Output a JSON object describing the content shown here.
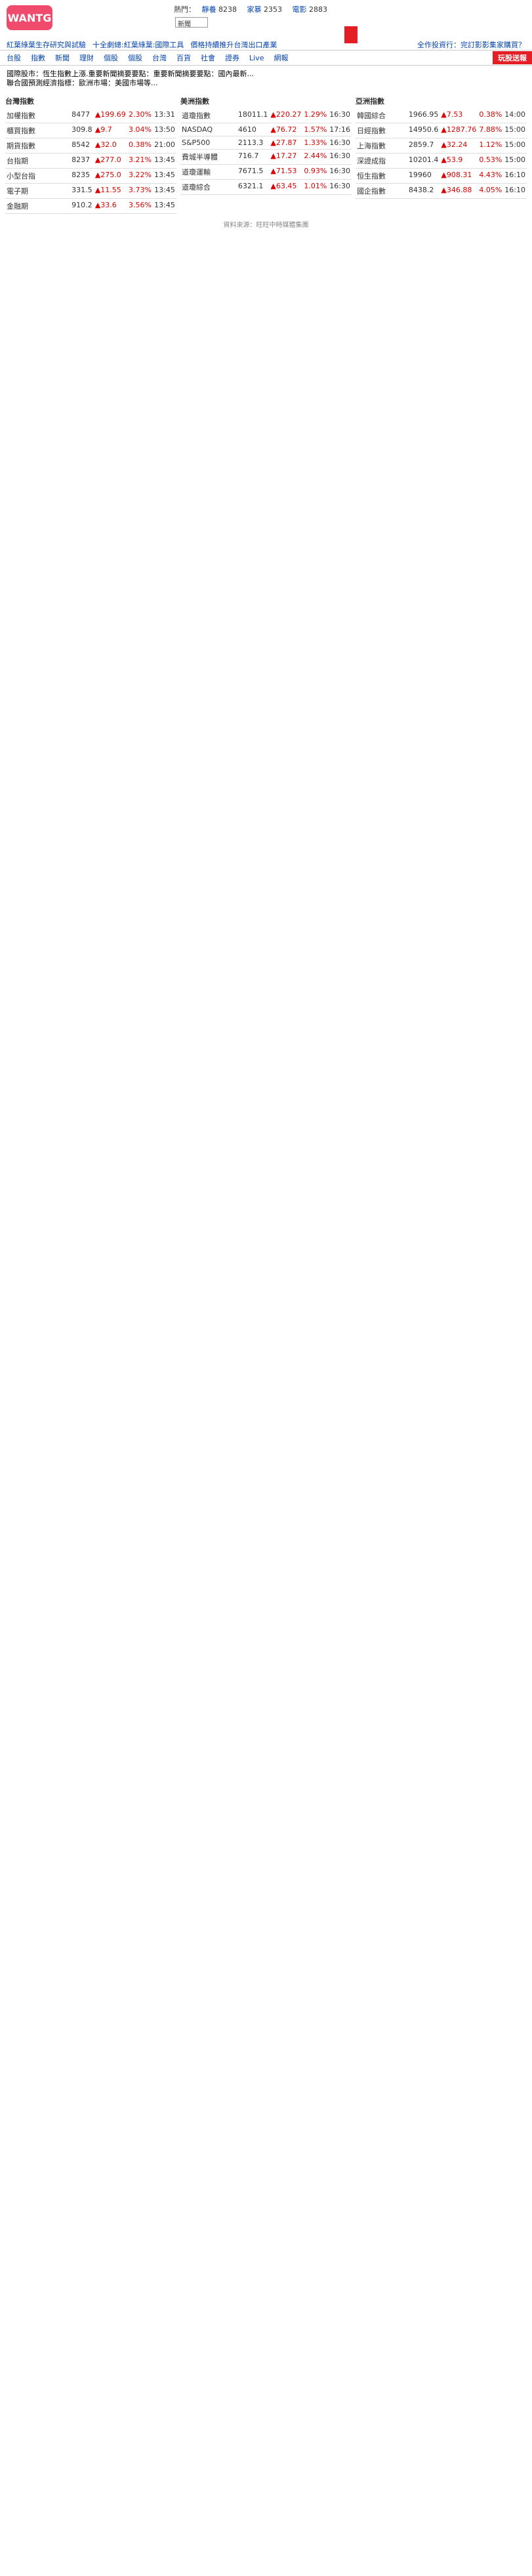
{
  "header": {
    "logo_text": "WANTG",
    "hot_label": "熱門：",
    "hot_links": [
      {
        "label": "靜養",
        "count": "8238"
      },
      {
        "label": "家暴",
        "count": "2353"
      },
      {
        "label": "電影",
        "count": "2883"
      }
    ],
    "select_value": "新聞"
  },
  "links": [
    "紅葉綠葉生存研究與試驗",
    "十全劇總:紅葉綠葉:國際工具",
    "價格持續推升台灣出口產業"
  ],
  "links_right": [
    "全作投資行：完訂影影集家購買？"
  ],
  "nav": [
    "台股",
    "指數",
    "新聞",
    "理財",
    "個股",
    "個股",
    "台灣",
    "百貨",
    "社會",
    "證券",
    "Live",
    "網報"
  ],
  "ad_text": "玩股送報",
  "bullets": [
    "國際股市：恆生指數上漲.重要新聞摘要要點：重要新聞摘要要點：國內最新...",
    "聯合國預測經濟指標：歐洲市場：美國市場等..."
  ],
  "tables": {
    "taiwan": [
      {
        "name": "加權指數",
        "price": "8477",
        "chg": "▲199.69",
        "pct": "2.30%",
        "time": "13:31"
      },
      {
        "name": "櫃買指數",
        "price": "309.8",
        "chg": "▲9.7",
        "pct": "3.04%",
        "time": "13:50"
      },
      {
        "name": "期貨指數",
        "price": "8542",
        "chg": "▲32.0",
        "pct": "0.38%",
        "time": "21:00"
      },
      {
        "name": "台指期",
        "price": "8237",
        "chg": "▲277.0",
        "pct": "3.21%",
        "time": "13:45"
      },
      {
        "name": "小型台指",
        "price": "8235",
        "chg": "▲275.0",
        "pct": "3.22%",
        "time": "13:45"
      },
      {
        "name": "電子期",
        "price": "331.5",
        "chg": "▲11.55",
        "pct": "3.73%",
        "time": "13:45"
      },
      {
        "name": "金融期",
        "price": "910.2",
        "chg": "▲33.6",
        "pct": "3.56%",
        "time": "13:45"
      }
    ],
    "us": [
      {
        "name": "道瓊指數",
        "price": "18011.1",
        "chg": "▲220.27",
        "pct": "1.29%",
        "time": "16:30"
      },
      {
        "name": "NASDAQ",
        "price": "4610",
        "chg": "▲76.72",
        "pct": "1.57%",
        "time": "17:16"
      },
      {
        "name": "S&P500",
        "price": "2113.3",
        "chg": "▲27.87",
        "pct": "1.33%",
        "time": "16:30"
      },
      {
        "name": "費城半導體",
        "price": "716.7",
        "chg": "▲17.27",
        "pct": "2.44%",
        "time": "16:30"
      },
      {
        "name": "道瓊運輸",
        "price": "7671.5",
        "chg": "▲71.53",
        "pct": "0.93%",
        "time": "16:30"
      },
      {
        "name": "道瓊綜合",
        "price": "6321.1",
        "chg": "▲63.45",
        "pct": "1.01%",
        "time": "16:30"
      }
    ],
    "asia": [
      {
        "name": "韓國綜合",
        "price": "1966.95",
        "chg": "▲7.53",
        "pct": "0.38%",
        "time": "14:00"
      },
      {
        "name": "日經指數",
        "price": "14950.6",
        "chg": "▲1287.76",
        "pct": "7.88%",
        "time": "15:00"
      },
      {
        "name": "上海指數",
        "price": "2859.7",
        "chg": "▲32.24",
        "pct": "1.12%",
        "time": "15:00"
      },
      {
        "name": "深證成指",
        "price": "10201.4",
        "chg": "▲53.9",
        "pct": "0.53%",
        "time": "15:00"
      },
      {
        "name": "恒生指數",
        "price": "19960",
        "chg": "▲908.31",
        "pct": "4.43%",
        "time": "16:10"
      },
      {
        "name": "國企指數",
        "price": "8438.2",
        "chg": "▲346.88",
        "pct": "4.05%",
        "time": "16:10"
      }
    ]
  },
  "panel_titles": {
    "taiwan": "台灣指數",
    "us": "美洲指數",
    "asia": "亞洲指數"
  },
  "footer": "資料來源：旺旺中時媒體集團"
}
